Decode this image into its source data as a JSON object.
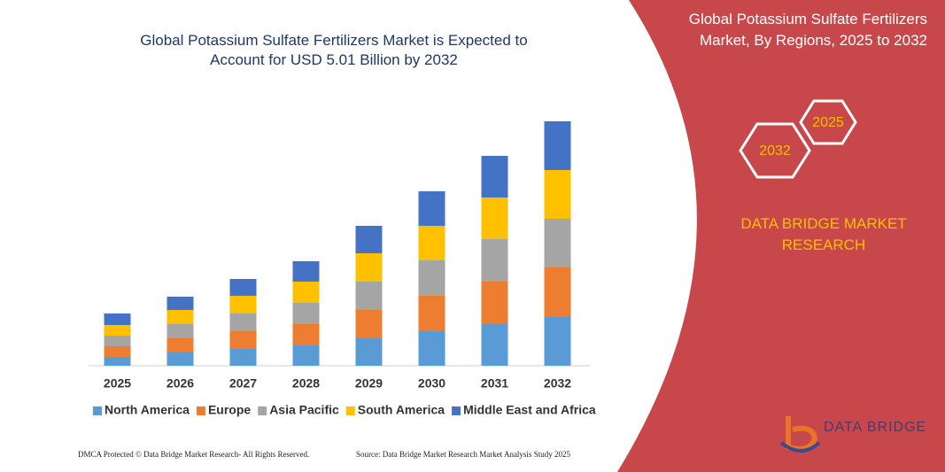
{
  "chart_data": {
    "type": "bar",
    "stacked": true,
    "title": "Global Potassium Sulfate Fertilizers Market is Expected to Account for USD 5.01 Billion by 2032",
    "categories": [
      "2025",
      "2026",
      "2027",
      "2028",
      "2029",
      "2030",
      "2031",
      "2032"
    ],
    "series": [
      {
        "name": "North America",
        "color": "#5b9bd5",
        "values": [
          10,
          15,
          19,
          23,
          31,
          39,
          47,
          55
        ]
      },
      {
        "name": "Europe",
        "color": "#ed7d31",
        "values": [
          12,
          16,
          20,
          24,
          32,
          40,
          48,
          56
        ]
      },
      {
        "name": "Asia Pacific",
        "color": "#a5a5a5",
        "values": [
          12,
          16,
          20,
          24,
          32,
          40,
          48,
          55
        ]
      },
      {
        "name": "South America",
        "color": "#ffc000",
        "values": [
          12,
          16,
          20,
          24,
          32,
          39,
          47,
          55
        ]
      },
      {
        "name": "Middle East and Africa",
        "color": "#4472c4",
        "values": [
          13,
          15,
          19,
          23,
          31,
          39,
          47,
          55
        ]
      }
    ],
    "ylim": [
      0,
      276
    ],
    "legend": "bottom"
  },
  "side_panel": {
    "title": "Global Potassium Sulfate Fertilizers Market, By Regions, 2025 to 2032",
    "hex_labels": [
      "2032",
      "2025"
    ],
    "brand": "DATA BRIDGE MARKET RESEARCH"
  },
  "footer": {
    "copyright": "DMCA Protected © Data Bridge Market Research-  All Rights Reserved.",
    "source": "Source: Data Bridge Market Research  Market Analysis Study 2025"
  },
  "logo": "DATA BRIDGE"
}
